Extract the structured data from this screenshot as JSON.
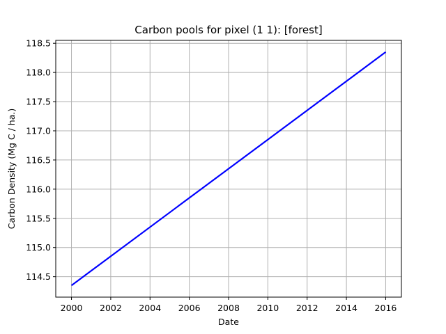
{
  "chart_data": {
    "type": "line",
    "title": "Carbon pools for pixel (1 1): [forest]",
    "xlabel": "Date",
    "ylabel": "Carbon Density (Mg C / ha.)",
    "grid": true,
    "xlim": [
      1999.2,
      2016.8
    ],
    "ylim": [
      114.15,
      118.55
    ],
    "x_ticks": [
      2000,
      2002,
      2004,
      2006,
      2008,
      2010,
      2012,
      2014,
      2016
    ],
    "y_ticks": [
      114.5,
      115.0,
      115.5,
      116.0,
      116.5,
      117.0,
      117.5,
      118.0,
      118.5
    ],
    "series": [
      {
        "color": "#0000ff",
        "x": [
          2000,
          2016
        ],
        "y": [
          114.35,
          118.35
        ]
      }
    ]
  }
}
